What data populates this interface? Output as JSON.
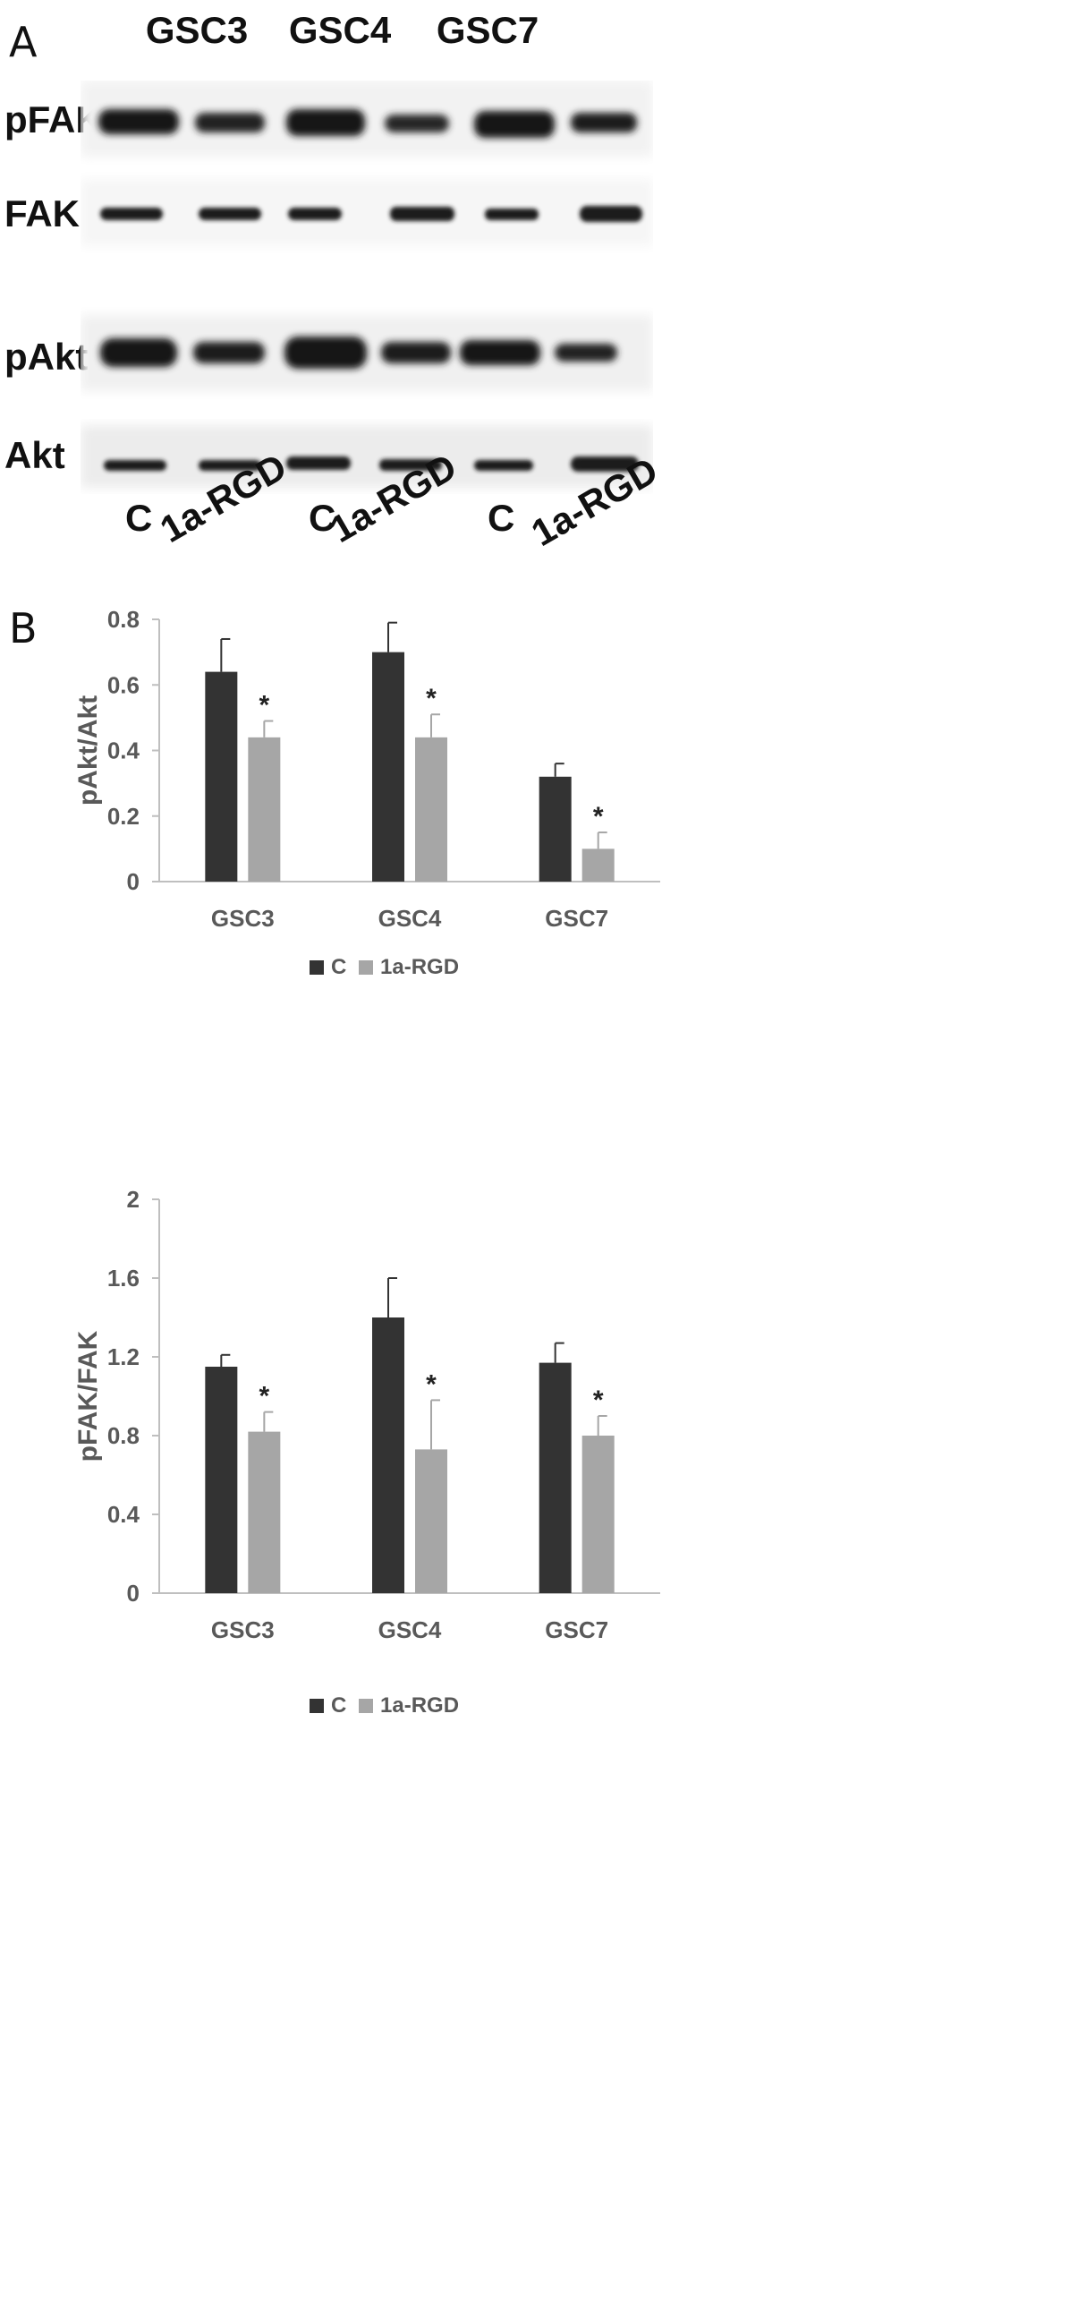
{
  "panels": {
    "a": "A",
    "b": "B"
  },
  "blot": {
    "cell_lines": [
      "GSC3",
      "GSC4",
      "GSC7"
    ],
    "rows": [
      "pFAK",
      "FAK",
      "pAkt",
      "Akt"
    ],
    "lanes": [
      "C",
      "1a-RGD",
      "C",
      "1a-RGD",
      "C",
      "1a-RGD"
    ]
  },
  "colors": {
    "control": "#333333",
    "treated": "#a6a6a6",
    "axis": "#bfbfbf",
    "text": "#595959"
  },
  "chart_data": [
    {
      "type": "bar",
      "categories": [
        "GSC3",
        "GSC4",
        "GSC7"
      ],
      "series": [
        {
          "name": "C",
          "values": [
            0.64,
            0.7,
            0.32
          ],
          "errors": [
            0.1,
            0.09,
            0.04
          ]
        },
        {
          "name": "1a-RGD",
          "values": [
            0.44,
            0.44,
            0.1
          ],
          "errors": [
            0.05,
            0.07,
            0.05
          ]
        }
      ],
      "significance": [
        "*",
        "*",
        "*"
      ],
      "ylabel": "pAkt/Akt",
      "ylim": [
        0,
        0.8
      ],
      "yticks": [
        "0",
        "0.2",
        "0.4",
        "0.6",
        "0.8"
      ],
      "legend": "bottom"
    },
    {
      "type": "bar",
      "categories": [
        "GSC3",
        "GSC4",
        "GSC7"
      ],
      "series": [
        {
          "name": "C",
          "values": [
            1.15,
            1.4,
            1.17
          ],
          "errors": [
            0.06,
            0.2,
            0.1
          ]
        },
        {
          "name": "1a-RGD",
          "values": [
            0.82,
            0.73,
            0.8
          ],
          "errors": [
            0.1,
            0.25,
            0.1
          ]
        }
      ],
      "significance": [
        "*",
        "*",
        "*"
      ],
      "ylabel": "pFAK/FAK",
      "ylim": [
        0,
        2
      ],
      "yticks": [
        "0",
        "0.4",
        "0.8",
        "1.2",
        "1.6",
        "2"
      ],
      "legend": "bottom"
    }
  ]
}
